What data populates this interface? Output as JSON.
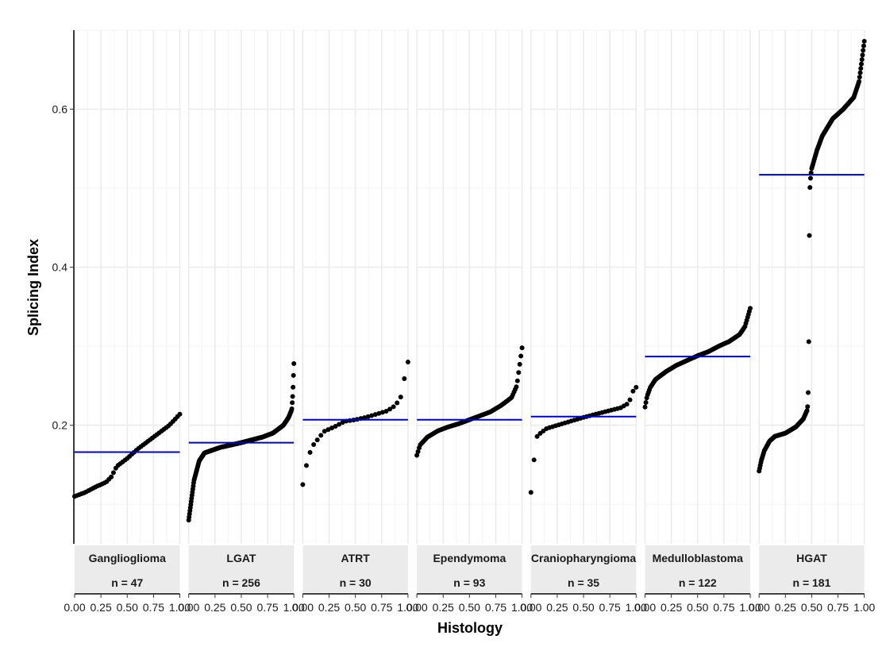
{
  "chart_data": {
    "type": "scatter",
    "xlabel": "Histology",
    "ylabel": "Splicing Index",
    "ylim": [
      0.05,
      0.7
    ],
    "xlim": [
      0,
      1
    ],
    "y_ticks": [
      0.2,
      0.4,
      0.6
    ],
    "y_tick_labels": [
      "0.2",
      "0.4",
      "0.6"
    ],
    "x_ticks": [
      0,
      0.25,
      0.5,
      0.75,
      1
    ],
    "x_tick_labels": [
      "0.00",
      "0.25",
      "0.50",
      "0.75",
      "1.00"
    ],
    "grid": true,
    "median_line_color": "#0000cc",
    "point_color": "#000000",
    "panels": [
      {
        "name": "Ganglioglioma",
        "n_label": "n = 47",
        "n": 47,
        "median": 0.166,
        "curve": [
          [
            0,
            0.11
          ],
          [
            0.1,
            0.115
          ],
          [
            0.2,
            0.122
          ],
          [
            0.3,
            0.128
          ],
          [
            0.35,
            0.135
          ],
          [
            0.4,
            0.148
          ],
          [
            0.5,
            0.158
          ],
          [
            0.6,
            0.17
          ],
          [
            0.7,
            0.18
          ],
          [
            0.8,
            0.19
          ],
          [
            0.9,
            0.2
          ],
          [
            1,
            0.214
          ]
        ]
      },
      {
        "name": "LGAT",
        "n_label": "n = 256",
        "n": 256,
        "median": 0.178,
        "curve": [
          [
            0,
            0.08
          ],
          [
            0.02,
            0.1
          ],
          [
            0.05,
            0.13
          ],
          [
            0.1,
            0.155
          ],
          [
            0.15,
            0.165
          ],
          [
            0.3,
            0.172
          ],
          [
            0.5,
            0.178
          ],
          [
            0.7,
            0.185
          ],
          [
            0.8,
            0.19
          ],
          [
            0.9,
            0.2
          ],
          [
            0.95,
            0.21
          ],
          [
            0.98,
            0.22
          ],
          [
            0.99,
            0.24
          ],
          [
            1,
            0.278
          ]
        ]
      },
      {
        "name": "ATRT",
        "n_label": "n = 30",
        "n": 30,
        "median": 0.207,
        "curve": [
          [
            0,
            0.125
          ],
          [
            0.05,
            0.16
          ],
          [
            0.1,
            0.175
          ],
          [
            0.2,
            0.192
          ],
          [
            0.3,
            0.198
          ],
          [
            0.4,
            0.205
          ],
          [
            0.5,
            0.207
          ],
          [
            0.6,
            0.21
          ],
          [
            0.7,
            0.214
          ],
          [
            0.8,
            0.218
          ],
          [
            0.88,
            0.225
          ],
          [
            0.93,
            0.235
          ],
          [
            0.97,
            0.262
          ],
          [
            1,
            0.28
          ]
        ]
      },
      {
        "name": "Ependymoma",
        "n_label": "n = 93",
        "n": 93,
        "median": 0.207,
        "curve": [
          [
            0,
            0.162
          ],
          [
            0.03,
            0.175
          ],
          [
            0.1,
            0.185
          ],
          [
            0.2,
            0.193
          ],
          [
            0.3,
            0.198
          ],
          [
            0.4,
            0.202
          ],
          [
            0.5,
            0.207
          ],
          [
            0.6,
            0.212
          ],
          [
            0.7,
            0.217
          ],
          [
            0.8,
            0.225
          ],
          [
            0.9,
            0.235
          ],
          [
            0.95,
            0.25
          ],
          [
            1,
            0.298
          ]
        ]
      },
      {
        "name": "Craniopharyngioma",
        "n_label": "n = 35",
        "n": 35,
        "median": 0.211,
        "curve": [
          [
            0,
            0.115
          ],
          [
            0.03,
            0.157
          ],
          [
            0.06,
            0.187
          ],
          [
            0.15,
            0.196
          ],
          [
            0.3,
            0.202
          ],
          [
            0.5,
            0.21
          ],
          [
            0.7,
            0.217
          ],
          [
            0.85,
            0.222
          ],
          [
            0.93,
            0.228
          ],
          [
            0.97,
            0.243
          ],
          [
            1,
            0.248
          ]
        ]
      },
      {
        "name": "Medulloblastoma",
        "n_label": "n = 122",
        "n": 122,
        "median": 0.287,
        "curve": [
          [
            0,
            0.223
          ],
          [
            0.02,
            0.237
          ],
          [
            0.05,
            0.248
          ],
          [
            0.1,
            0.258
          ],
          [
            0.2,
            0.268
          ],
          [
            0.3,
            0.276
          ],
          [
            0.4,
            0.282
          ],
          [
            0.5,
            0.288
          ],
          [
            0.6,
            0.293
          ],
          [
            0.7,
            0.3
          ],
          [
            0.8,
            0.306
          ],
          [
            0.9,
            0.315
          ],
          [
            0.95,
            0.325
          ],
          [
            1,
            0.348
          ]
        ]
      },
      {
        "name": "HGAT",
        "n_label": "n = 181",
        "n": 181,
        "median": 0.517,
        "curve": [
          [
            0,
            0.142
          ],
          [
            0.02,
            0.155
          ],
          [
            0.05,
            0.168
          ],
          [
            0.1,
            0.18
          ],
          [
            0.15,
            0.186
          ],
          [
            0.25,
            0.19
          ],
          [
            0.35,
            0.198
          ],
          [
            0.42,
            0.208
          ],
          [
            0.46,
            0.22
          ],
          [
            0.47,
            0.252
          ],
          [
            0.48,
            0.494
          ],
          [
            0.49,
            0.515
          ],
          [
            0.5,
            0.525
          ],
          [
            0.55,
            0.548
          ],
          [
            0.6,
            0.566
          ],
          [
            0.7,
            0.588
          ],
          [
            0.8,
            0.6
          ],
          [
            0.9,
            0.615
          ],
          [
            0.95,
            0.635
          ],
          [
            0.98,
            0.665
          ],
          [
            1,
            0.686
          ]
        ]
      }
    ]
  }
}
